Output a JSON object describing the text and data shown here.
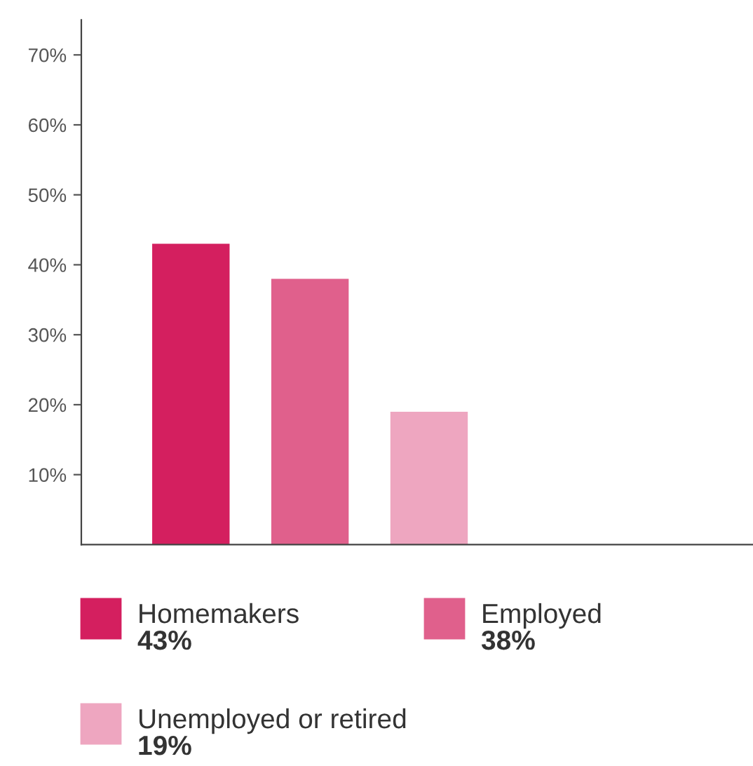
{
  "chart_data": {
    "type": "bar",
    "stacked": true,
    "categories": [
      null,
      null,
      null
    ],
    "series": [
      {
        "name": "Homemakers",
        "color": "#d41f5f",
        "values": [
          43,
          null,
          null
        ]
      },
      {
        "name": "Employed",
        "color": "#e0608c",
        "values": [
          null,
          38,
          null
        ]
      },
      {
        "name": "Unemployed or retired",
        "color": "#eea6c0",
        "values": [
          null,
          null,
          19
        ]
      }
    ],
    "annotations": [
      "43%",
      "38%",
      "19%"
    ],
    "ylim": [
      0,
      75
    ],
    "yticks": [
      {
        "value": 10,
        "label": "10%"
      },
      {
        "value": 20,
        "label": "20%"
      },
      {
        "value": 30,
        "label": "30%"
      },
      {
        "value": 40,
        "label": "40%"
      },
      {
        "value": 50,
        "label": "50%"
      },
      {
        "value": 60,
        "label": "60%"
      },
      {
        "value": 70,
        "label": "70%"
      }
    ],
    "grid": false,
    "legend": "bottom"
  }
}
